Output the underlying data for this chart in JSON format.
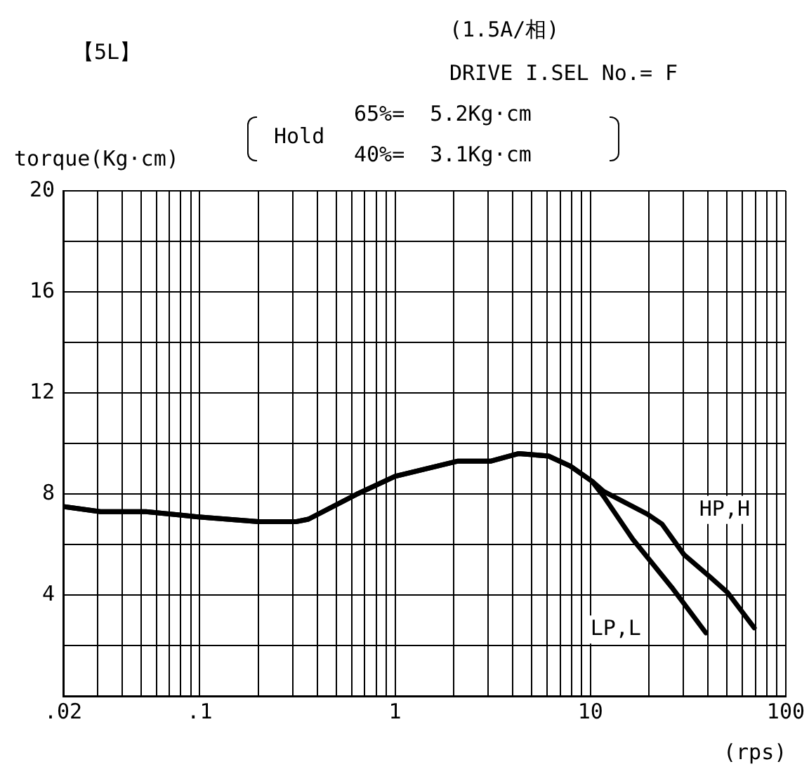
{
  "chart_data": {
    "type": "line",
    "title": "【5L】",
    "xlabel": "(rps)",
    "ylabel": "torque(Kg·cm)",
    "annotations": [
      "(1.5A/相)",
      "DRIVE I.SEL No.= F",
      "Hold",
      "65%=  5.2Kg·cm",
      "40%=  3.1Kg·cm"
    ],
    "log": "x",
    "xlim": [
      0.02,
      100
    ],
    "ylim": [
      0,
      20
    ],
    "xticks": [
      {
        "value": 0.02,
        "label": ".02"
      },
      {
        "value": 0.03,
        "label": null
      },
      {
        "value": 0.04,
        "label": null
      },
      {
        "value": 0.05,
        "label": null
      },
      {
        "value": 0.06,
        "label": null
      },
      {
        "value": 0.07,
        "label": null
      },
      {
        "value": 0.08,
        "label": null
      },
      {
        "value": 0.09,
        "label": null
      },
      {
        "value": 0.1,
        "label": ".1"
      },
      {
        "value": 0.2,
        "label": null
      },
      {
        "value": 0.3,
        "label": null
      },
      {
        "value": 0.4,
        "label": null
      },
      {
        "value": 0.5,
        "label": null
      },
      {
        "value": 0.6,
        "label": null
      },
      {
        "value": 0.7,
        "label": null
      },
      {
        "value": 0.8,
        "label": null
      },
      {
        "value": 0.9,
        "label": null
      },
      1,
      {
        "value": 2,
        "label": null
      },
      {
        "value": 3,
        "label": null
      },
      {
        "value": 4,
        "label": null
      },
      {
        "value": 5,
        "label": null
      },
      {
        "value": 6,
        "label": null
      },
      {
        "value": 7,
        "label": null
      },
      {
        "value": 8,
        "label": null
      },
      {
        "value": 9,
        "label": null
      },
      10,
      {
        "value": 20,
        "label": null
      },
      {
        "value": 30,
        "label": null
      },
      {
        "value": 40,
        "label": null
      },
      {
        "value": 50,
        "label": null
      },
      {
        "value": 60,
        "label": null
      },
      {
        "value": 70,
        "label": null
      },
      {
        "value": 80,
        "label": null
      },
      {
        "value": 90,
        "label": null
      },
      100
    ],
    "yticks": [
      {
        "value": 0,
        "label": null
      },
      {
        "value": 2,
        "label": null
      },
      4,
      {
        "value": 6,
        "label": null
      },
      8,
      {
        "value": 10,
        "label": null
      },
      12,
      {
        "value": 14,
        "label": null
      },
      16,
      {
        "value": 18,
        "label": null
      },
      20
    ],
    "grid": true,
    "legend": false,
    "marker": "none",
    "line_style": "solid",
    "series": [
      {
        "name": "HP,H",
        "color": "#000000",
        "x": [
          0.02,
          0.031,
          0.053,
          0.096,
          0.2,
          0.31,
          0.36,
          0.64,
          1.0,
          2.1,
          3.1,
          4.3,
          6.1,
          7.9,
          10.2,
          11.7,
          19.6,
          23.3,
          30.1,
          41.2,
          50.3,
          69
        ],
        "values": [
          7.5,
          7.3,
          7.3,
          7.1,
          6.9,
          6.9,
          7.0,
          8.0,
          8.7,
          9.3,
          9.3,
          9.6,
          9.5,
          9.1,
          8.5,
          8.1,
          7.2,
          6.8,
          5.6,
          4.7,
          4.1,
          2.7
        ]
      },
      {
        "name": "LP,L",
        "color": "#000000",
        "x": [
          0.02,
          0.031,
          0.053,
          0.096,
          0.2,
          0.31,
          0.36,
          0.64,
          1.0,
          2.1,
          3.1,
          4.3,
          6.1,
          7.9,
          10.2,
          11.7,
          16.5,
          26.1,
          39
        ],
        "values": [
          7.5,
          7.3,
          7.3,
          7.1,
          6.9,
          6.9,
          7.0,
          8.0,
          8.7,
          9.3,
          9.3,
          9.6,
          9.5,
          9.1,
          8.5,
          7.9,
          6.2,
          4.3,
          2.5
        ]
      }
    ]
  }
}
